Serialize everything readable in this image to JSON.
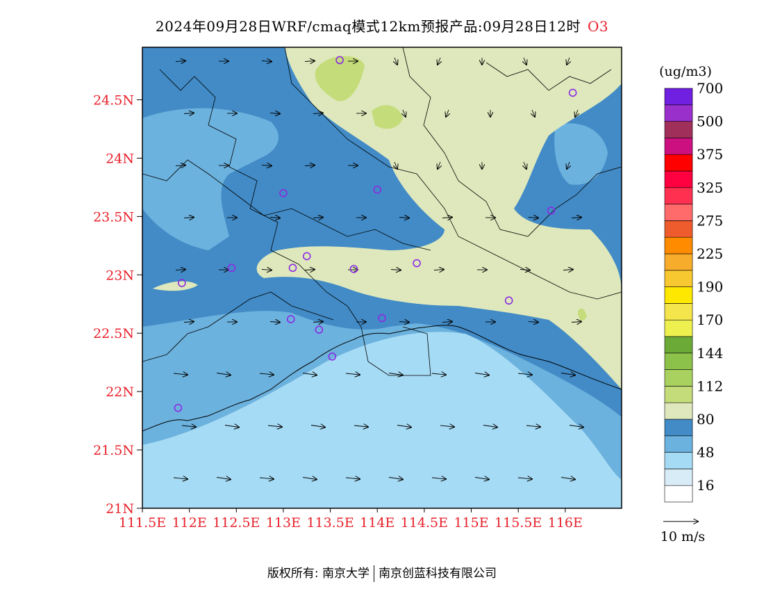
{
  "title": {
    "main": "2024年09月28日WRF/cmaq模式12km预报产品:09月28日12时",
    "species": "O3",
    "species_color": "#e8202a"
  },
  "map": {
    "lon_range": [
      111.5,
      116.6
    ],
    "lat_range": [
      21.0,
      24.95
    ],
    "lon_ticks": [
      111.5,
      112.0,
      112.5,
      113.0,
      113.5,
      114.0,
      114.5,
      115.0,
      115.5,
      116.0
    ],
    "lon_labels": [
      "111.5E",
      "112E",
      "112.5E",
      "113E",
      "113.5E",
      "114E",
      "114.5E",
      "115E",
      "115.5E",
      "116E"
    ],
    "lat_ticks": [
      21.0,
      21.5,
      22.0,
      22.5,
      23.0,
      23.5,
      24.0,
      24.5
    ],
    "lat_labels": [
      "21N",
      "21.5N",
      "22N",
      "22.5N",
      "23N",
      "23.5N",
      "24N",
      "24.5N"
    ],
    "label_color": "#e8202a",
    "stations": [
      [
        113.6,
        24.84
      ],
      [
        116.08,
        24.56
      ],
      [
        113.0,
        23.7
      ],
      [
        114.0,
        23.73
      ],
      [
        115.85,
        23.55
      ],
      [
        111.92,
        22.93
      ],
      [
        112.45,
        23.06
      ],
      [
        113.1,
        23.06
      ],
      [
        113.25,
        23.16
      ],
      [
        113.75,
        23.05
      ],
      [
        114.42,
        23.1
      ],
      [
        115.4,
        22.78
      ],
      [
        113.08,
        22.62
      ],
      [
        113.38,
        22.53
      ],
      [
        114.05,
        22.63
      ],
      [
        113.52,
        22.3
      ],
      [
        111.88,
        21.86
      ]
    ],
    "station_color": "#8a2be2"
  },
  "colorbar": {
    "unit": "(ug/m3)",
    "colors": [
      "#ffffff",
      "#d8ecf8",
      "#a6dbf5",
      "#6cb2de",
      "#428bc6",
      "#dfe8bc",
      "#c4dc7a",
      "#a8d160",
      "#8cc14a",
      "#6caa38",
      "#eef050",
      "#f5e54c",
      "#ffe800",
      "#f8c830",
      "#f8ac2c",
      "#ff8c00",
      "#ee5b2c",
      "#ff6a6a",
      "#ff3050",
      "#ff0040",
      "#ff0000",
      "#cc1080",
      "#a0305a",
      "#9a30cc",
      "#7020e0"
    ],
    "labels": [
      {
        "text": "16",
        "index": 1
      },
      {
        "text": "48",
        "index": 3
      },
      {
        "text": "80",
        "index": 5
      },
      {
        "text": "112",
        "index": 7
      },
      {
        "text": "144",
        "index": 9
      },
      {
        "text": "170",
        "index": 11
      },
      {
        "text": "190",
        "index": 13
      },
      {
        "text": "225",
        "index": 15
      },
      {
        "text": "275",
        "index": 17
      },
      {
        "text": "325",
        "index": 19
      },
      {
        "text": "375",
        "index": 21
      },
      {
        "text": "500",
        "index": 23
      },
      {
        "text": "700",
        "index": 25
      }
    ]
  },
  "wind_legend": {
    "label": "10 m/s"
  },
  "copyright": {
    "left": "版权所有: 南京大学",
    "right": "南京创蓝科技有限公司"
  }
}
